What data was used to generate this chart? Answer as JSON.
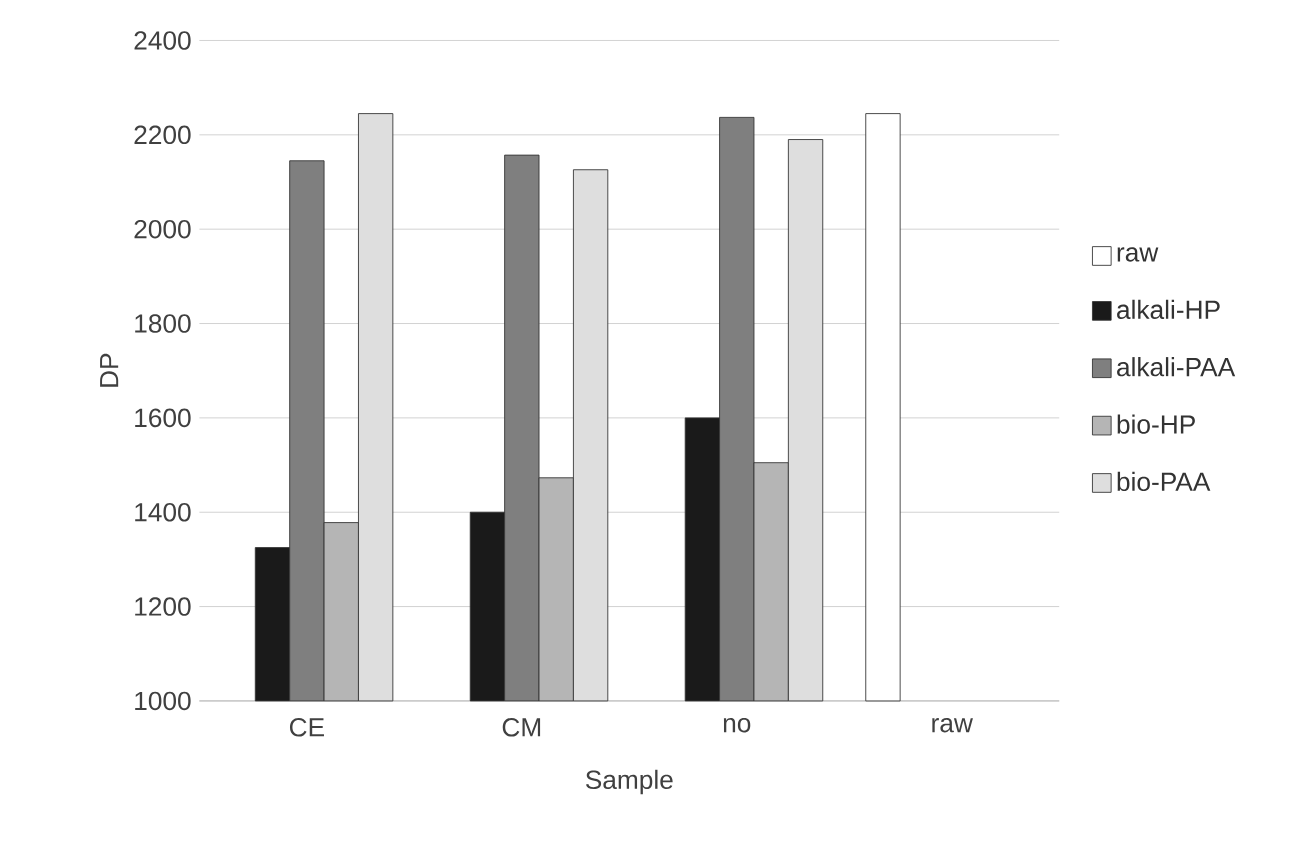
{
  "chart_data": {
    "type": "bar",
    "xlabel": "Sample",
    "ylabel": "DP",
    "categories": [
      "CE",
      "CM",
      "no",
      "raw"
    ],
    "series": [
      {
        "name": "raw",
        "color": "#ffffff",
        "values": [
          null,
          null,
          null,
          2245
        ]
      },
      {
        "name": "alkali-HP",
        "color": "#1a1a1a",
        "values": [
          1325,
          1400,
          1600,
          null
        ]
      },
      {
        "name": "alkali-PAA",
        "color": "#7f7f7f",
        "values": [
          2145,
          2157,
          2237,
          null
        ]
      },
      {
        "name": "bio-HP",
        "color": "#b5b5b5",
        "values": [
          1378,
          1473,
          1505,
          null
        ]
      },
      {
        "name": "bio-PAA",
        "color": "#dedede",
        "values": [
          2245,
          2126,
          2190,
          null
        ]
      }
    ],
    "ylim": [
      1000,
      2400
    ],
    "yticks": [
      1000,
      1200,
      1400,
      1600,
      1800,
      2000,
      2200,
      2400
    ],
    "grid": "y",
    "legend": "right"
  }
}
